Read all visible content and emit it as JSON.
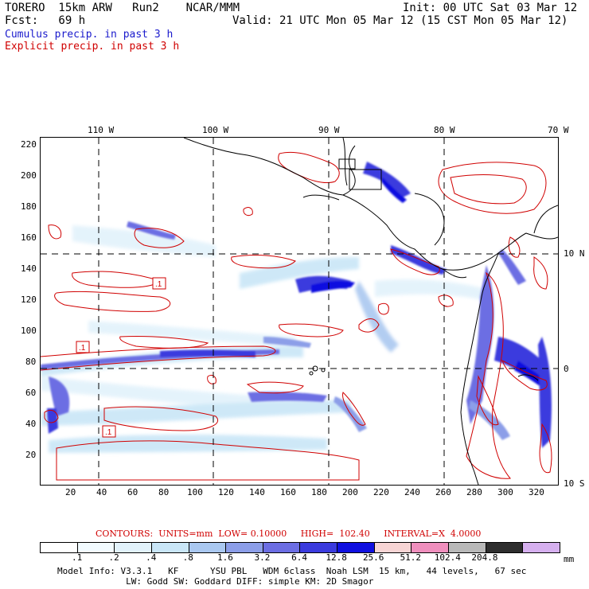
{
  "header": {
    "line1_left": "TORERO  15km ARW   Run2    NCAR/MMM",
    "line1_right": "Init: 00 UTC Sat 03 Mar 12",
    "line2_left": "Fcst:   69 h",
    "line2_right": "Valid: 21 UTC Mon 05 Mar 12 (15 CST Mon 05 Mar 12)",
    "cumulus_label": "Cumulus precip. in past 3 h",
    "explicit_label": "Explicit precip. in past 3 h"
  },
  "colors": {
    "cumulus": "#1a1acc",
    "explicit": "#d00000",
    "coast": "#000000"
  },
  "axes": {
    "top_labels": [
      "110 W",
      "100 W",
      "90 W",
      "80 W",
      "70 W"
    ],
    "right_labels": [
      "10 N",
      "0",
      "10 S"
    ],
    "left_labels": [
      "220",
      "200",
      "180",
      "160",
      "140",
      "120",
      "100",
      "80",
      "60",
      "40",
      "20"
    ],
    "bottom_labels": [
      "20",
      "40",
      "60",
      "80",
      "100",
      "120",
      "140",
      "160",
      "180",
      "200",
      "220",
      "240",
      "260",
      "280",
      "300",
      "320"
    ]
  },
  "contour_info": {
    "text": "CONTOURS:  UNITS=mm  LOW= 0.10000     HIGH=  102.40     INTERVAL=X  4.0000"
  },
  "colorbar": {
    "colors": [
      "#ffffff",
      "#f2fbff",
      "#e2f2fb",
      "#c9e6f7",
      "#aac8f0",
      "#8c9ee8",
      "#6c6ee3",
      "#3b3bde",
      "#1010e0",
      "#f7d5d5",
      "#ef8fbd",
      "#b8b8b8",
      "#2e2e2e",
      "#d6b0ef"
    ],
    "labels": [
      ".1",
      ".2",
      ".4",
      ".8",
      "1.6",
      "3.2",
      "6.4",
      "12.8",
      "25.6",
      "51.2",
      "102.4",
      "204.8"
    ],
    "unit": "mm"
  },
  "footer": {
    "line1": "Model Info: V3.3.1   KF      YSU PBL   WDM 6class  Noah LSM  15 km,   44 levels,   67 sec",
    "line2": "             LW: Godd SW: Goddard DIFF: simple KM: 2D Smagor"
  },
  "map_labels": {
    "boxed_values": [
      ".1",
      ".1",
      ".1"
    ]
  }
}
